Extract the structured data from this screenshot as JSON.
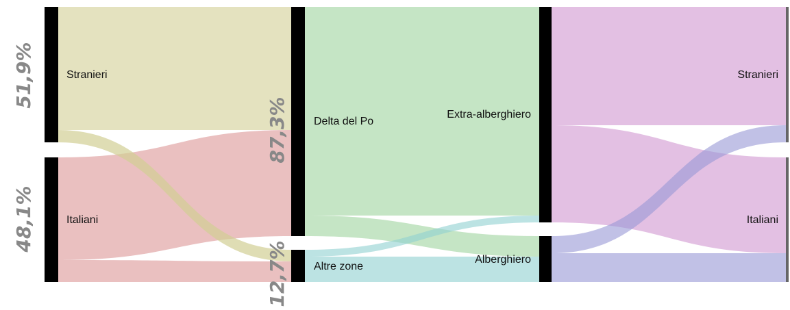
{
  "columns": [
    {
      "nodes": [
        {
          "label": "Stranieri",
          "share": "51,9%"
        },
        {
          "label": "Italiani",
          "share": "48,1%"
        }
      ]
    },
    {
      "nodes": [
        {
          "label": "Delta del Po",
          "share": "87,3%"
        },
        {
          "label": "Altre zone",
          "share": "12,7%"
        }
      ]
    },
    {
      "nodes": [
        {
          "label": "Extra-alberghiero"
        },
        {
          "label": "Alberghiero"
        }
      ]
    },
    {
      "nodes": [
        {
          "label": "Stranieri"
        },
        {
          "label": "Italiani"
        }
      ]
    }
  ]
}
